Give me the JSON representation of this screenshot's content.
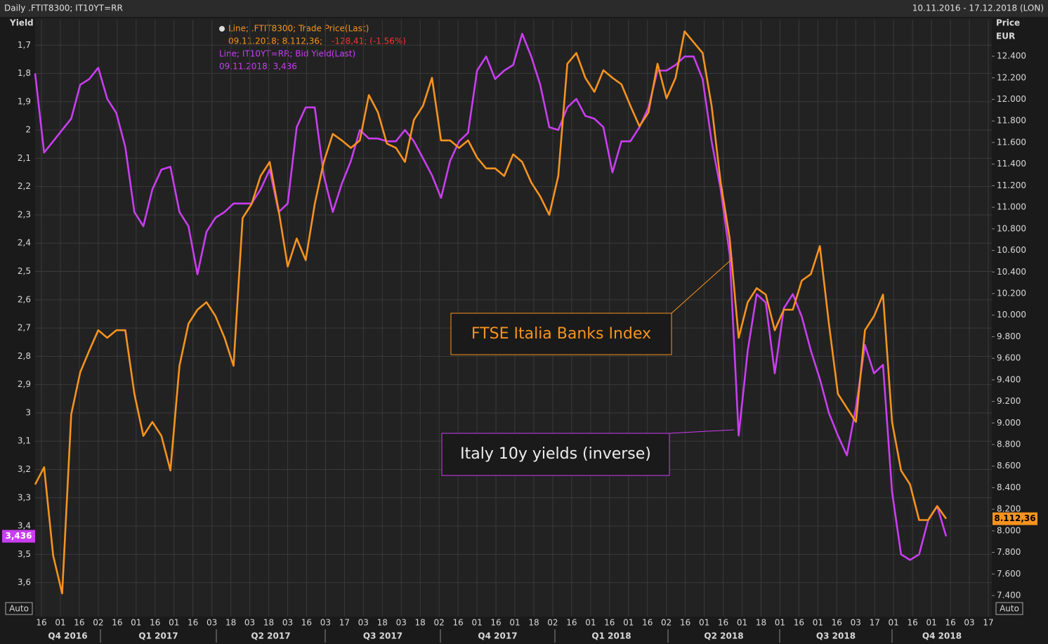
{
  "chart_data": {
    "type": "line",
    "title": "Daily .FTIT8300; IT10YT=RR",
    "date_range": "10.11.2016 - 17.12.2018 (LON)",
    "y_label": "Yield",
    "y2_label": "Price",
    "y2_unit": "EUR",
    "auto_label": "Auto",
    "legend": [
      {
        "line": "Line; .FTIT8300; Trade Price(Last)",
        "detail": "09.11.2018; 8.112,36;",
        "change": "-128,41; (-1,56%)"
      },
      {
        "line": "Line; IT10YT=RR; Bid Yield(Last)",
        "detail": "09.11.2018; 3,436"
      }
    ],
    "annotations": [
      "FTSE Italia Banks Index",
      "Italy 10y yields (inverse)"
    ],
    "x_tick_labels": [
      "16",
      "01",
      "16",
      "02",
      "16",
      "01",
      "16",
      "01",
      "16",
      "03",
      "18",
      "03",
      "18",
      "03",
      "16",
      "03",
      "17",
      "03",
      "18",
      "03",
      "18",
      "02",
      "16",
      "01",
      "16",
      "01",
      "18",
      "02",
      "16",
      "01",
      "16",
      "01",
      "16",
      "02",
      "16",
      "01",
      "16",
      "01",
      "18",
      "01",
      "16",
      "01",
      "16",
      "03",
      "17",
      "01",
      "16",
      "01",
      "16",
      "03",
      "17"
    ],
    "quarters": [
      "Q4 2016",
      "Q1 2017",
      "Q2 2017",
      "Q3 2017",
      "Q4 2017",
      "Q1 2018",
      "Q2 2018",
      "Q3 2018",
      "Q4 2018"
    ],
    "ylim": [
      1.61,
      3.72
    ],
    "y_inverted": true,
    "yticks": [
      {
        "value": 1.7,
        "label": "1,7"
      },
      {
        "value": 1.8,
        "label": "1,8"
      },
      {
        "value": 1.9,
        "label": "1,9"
      },
      2,
      {
        "value": 2.1,
        "label": "2,1"
      },
      {
        "value": 2.2,
        "label": "2,2"
      },
      {
        "value": 2.3,
        "label": "2,3"
      },
      {
        "value": 2.4,
        "label": "2,4"
      },
      {
        "value": 2.5,
        "label": "2,5"
      },
      {
        "value": 2.6,
        "label": "2,6"
      },
      {
        "value": 2.7,
        "label": "2,7"
      },
      {
        "value": 2.8,
        "label": "2,8"
      },
      {
        "value": 2.9,
        "label": "2,9"
      },
      3,
      {
        "value": 3.1,
        "label": "3,1"
      },
      {
        "value": 3.2,
        "label": "3,2"
      },
      {
        "value": 3.3,
        "label": "3,3"
      },
      {
        "value": 3.4,
        "label": "3,4"
      },
      {
        "value": 3.5,
        "label": "3,5"
      },
      {
        "value": 3.6,
        "label": "3,6"
      }
    ],
    "y2lim": [
      7205,
      12739
    ],
    "y2ticks": [
      {
        "value": 7400,
        "label": "7.400"
      },
      {
        "value": 7600,
        "label": "7.600"
      },
      {
        "value": 7800,
        "label": "7.800"
      },
      {
        "value": 8000,
        "label": "8.000"
      },
      {
        "value": 8200,
        "label": "8.200"
      },
      {
        "value": 8400,
        "label": "8.400"
      },
      {
        "value": 8600,
        "label": "8.600"
      },
      {
        "value": 8800,
        "label": "8.800"
      },
      {
        "value": 9000,
        "label": "9.000"
      },
      {
        "value": 9200,
        "label": "9.200"
      },
      {
        "value": 9400,
        "label": "9.400"
      },
      {
        "value": 9600,
        "label": "9.600"
      },
      {
        "value": 9800,
        "label": "9.800"
      },
      {
        "value": 10000,
        "label": "10.000"
      },
      {
        "value": 10200,
        "label": "10.200"
      },
      {
        "value": 10400,
        "label": "10.400"
      },
      {
        "value": 10600,
        "label": "10.600"
      },
      {
        "value": 10800,
        "label": "10.800"
      },
      {
        "value": 11000,
        "label": "11.000"
      },
      {
        "value": 11200,
        "label": "11.200"
      },
      {
        "value": 11400,
        "label": "11.400"
      },
      {
        "value": 11600,
        "label": "11.600"
      },
      {
        "value": 11800,
        "label": "11.800"
      },
      {
        "value": 12000,
        "label": "12.000"
      },
      {
        "value": 12200,
        "label": "12.200"
      },
      {
        "value": 12400,
        "label": "12.400"
      }
    ],
    "grid": true,
    "series": [
      {
        "name": "IT10YT=RR",
        "color": "#c93ef0",
        "axis": "y",
        "last_label": "3,436",
        "values": [
          1.8,
          2.08,
          2.04,
          2.0,
          1.96,
          1.84,
          1.82,
          1.78,
          1.89,
          1.94,
          2.06,
          2.29,
          2.34,
          2.21,
          2.14,
          2.13,
          2.29,
          2.34,
          2.51,
          2.36,
          2.31,
          2.29,
          2.26,
          2.26,
          2.26,
          2.21,
          2.14,
          2.29,
          2.26,
          1.99,
          1.92,
          1.92,
          2.16,
          2.29,
          2.19,
          2.11,
          2.0,
          2.03,
          2.03,
          2.04,
          2.04,
          2.0,
          2.04,
          2.1,
          2.16,
          2.24,
          2.11,
          2.04,
          2.01,
          1.79,
          1.74,
          1.82,
          1.79,
          1.77,
          1.66,
          1.74,
          1.84,
          1.99,
          2.0,
          1.92,
          1.89,
          1.95,
          1.96,
          1.99,
          2.15,
          2.04,
          2.04,
          1.99,
          1.92,
          1.79,
          1.79,
          1.77,
          1.74,
          1.74,
          1.82,
          2.04,
          2.21,
          2.44,
          3.08,
          2.78,
          2.58,
          2.61,
          2.86,
          2.63,
          2.58,
          2.66,
          2.78,
          2.88,
          3.0,
          3.08,
          3.15,
          2.98,
          2.76,
          2.86,
          2.83,
          3.28,
          3.5,
          3.52,
          3.5,
          3.38,
          3.33,
          3.436
        ]
      },
      {
        "name": ".FTIT8300",
        "color": "#f7931e",
        "axis": "y2",
        "last_label": "8.112,36",
        "values": [
          8430,
          8590,
          7770,
          7420,
          9080,
          9470,
          9670,
          9860,
          9790,
          9860,
          9860,
          9270,
          8880,
          9010,
          8880,
          8560,
          9530,
          9920,
          10050,
          10120,
          9990,
          9790,
          9530,
          10900,
          11030,
          11290,
          11420,
          10970,
          10450,
          10710,
          10510,
          11030,
          11420,
          11680,
          11620,
          11550,
          11620,
          12040,
          11880,
          11590,
          11550,
          11420,
          11810,
          11940,
          12200,
          11620,
          11620,
          11550,
          11620,
          11460,
          11360,
          11360,
          11290,
          11490,
          11420,
          11230,
          11100,
          10930,
          11290,
          12330,
          12430,
          12200,
          12070,
          12270,
          12200,
          12140,
          11940,
          11750,
          11880,
          12330,
          12010,
          12200,
          12630,
          12530,
          12430,
          11940,
          11230,
          10710,
          9790,
          10120,
          10250,
          10190,
          9860,
          10050,
          10050,
          10320,
          10380,
          10640,
          9920,
          9270,
          9140,
          9010,
          9860,
          9990,
          10190,
          9010,
          8560,
          8430,
          8100,
          8100,
          8230,
          8112.36
        ]
      }
    ]
  }
}
